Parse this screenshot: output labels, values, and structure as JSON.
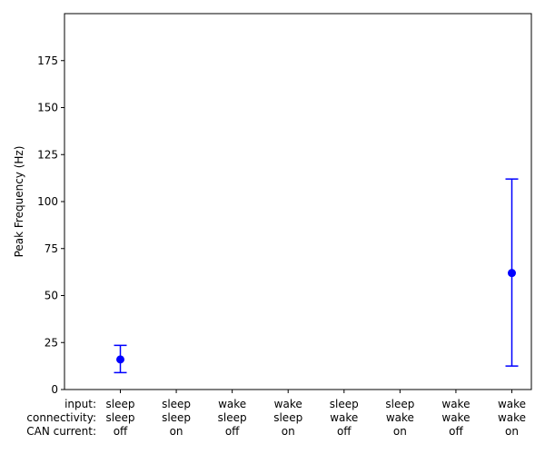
{
  "chart_data": {
    "type": "scatter",
    "title": "",
    "xlabel": "",
    "ylabel": "Peak Frequency (Hz)",
    "ylim": [
      0,
      200
    ],
    "yticks": [
      0,
      25,
      50,
      75,
      100,
      125,
      150,
      175
    ],
    "grid": false,
    "marker_color": "#0000ff",
    "row_labels": [
      "input:",
      "connectivity:",
      "CAN current:"
    ],
    "categories": [
      [
        "sleep",
        "sleep",
        "off"
      ],
      [
        "sleep",
        "sleep",
        "on"
      ],
      [
        "wake",
        "sleep",
        "off"
      ],
      [
        "wake",
        "sleep",
        "on"
      ],
      [
        "sleep",
        "wake",
        "off"
      ],
      [
        "sleep",
        "wake",
        "on"
      ],
      [
        "wake",
        "wake",
        "off"
      ],
      [
        "wake",
        "wake",
        "on"
      ]
    ],
    "points": [
      {
        "category_index": 0,
        "y": 16,
        "err_low": 9,
        "err_high": 23.5
      },
      {
        "category_index": 7,
        "y": 62,
        "err_low": 12.5,
        "err_high": 112
      }
    ]
  }
}
